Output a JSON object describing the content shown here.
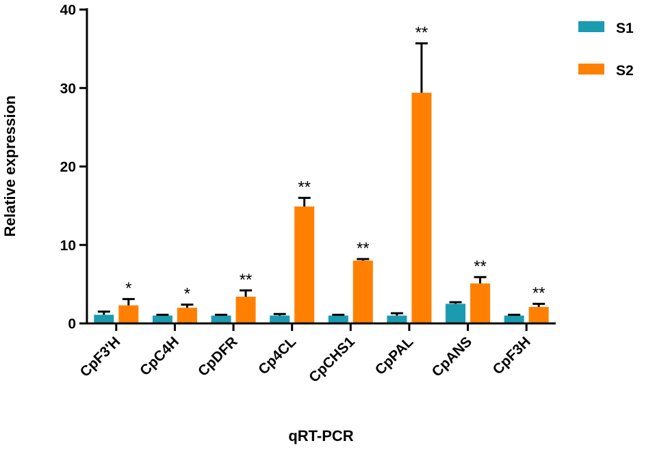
{
  "chart_data": {
    "type": "bar",
    "title": "",
    "xlabel": "qRT-PCR",
    "ylabel": "Relative expression",
    "ylim": [
      0,
      40
    ],
    "yticks": [
      0,
      10,
      20,
      30,
      40
    ],
    "grid": false,
    "legend_position": "top-right",
    "categories": [
      "CpF3'H",
      "CpC4H",
      "CpDFR",
      "Cp4CL",
      "CpCHS1",
      "CpPAL",
      "CpANS",
      "CpF3H"
    ],
    "series": [
      {
        "name": "S1",
        "color": "#1a9bb0",
        "values": [
          1.1,
          1.0,
          1.0,
          1.0,
          1.0,
          1.0,
          2.5,
          1.0
        ],
        "errors": [
          0.4,
          0.1,
          0.1,
          0.2,
          0.1,
          0.3,
          0.2,
          0.1
        ]
      },
      {
        "name": "S2",
        "color": "#ff8000",
        "values": [
          2.3,
          2.0,
          3.4,
          14.9,
          8.0,
          29.4,
          5.1,
          2.1
        ],
        "errors": [
          0.8,
          0.4,
          0.8,
          1.1,
          0.2,
          6.3,
          0.8,
          0.4
        ]
      }
    ],
    "significance": [
      "*",
      "*",
      "**",
      "**",
      "**",
      "**",
      "**",
      "**"
    ]
  }
}
